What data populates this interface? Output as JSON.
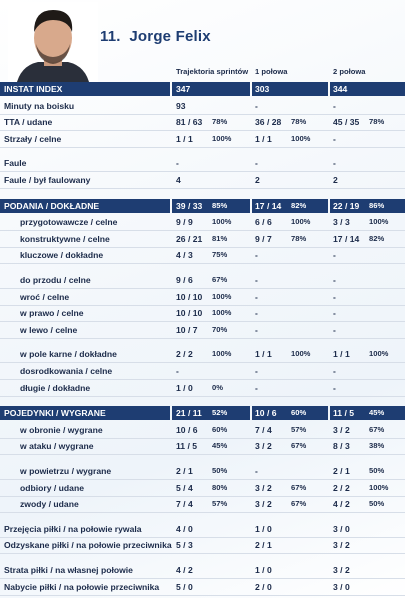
{
  "header": {
    "number": "11.",
    "name": "Jorge Felix"
  },
  "columns": [
    "Trajektoria sprintów",
    "1 połowa",
    "2 połowa"
  ],
  "table": {
    "sections": [
      {
        "heading": {
          "label": "INSTAT INDEX",
          "cells": [
            [
              "347"
            ],
            [
              "303"
            ],
            [
              "344"
            ]
          ]
        },
        "rows": [
          {
            "label": "Minuty na boisku",
            "cells": [
              [
                "93"
              ],
              [
                "-"
              ],
              [
                "-"
              ]
            ]
          },
          {
            "label": "TTA / udane",
            "cells": [
              [
                "81 / 63",
                "78%"
              ],
              [
                "36 / 28",
                "78%"
              ],
              [
                "45 / 35",
                "78%"
              ]
            ]
          },
          {
            "label": "Strzały / celne",
            "cells": [
              [
                "1 / 1",
                "100%"
              ],
              [
                "1 / 1",
                "100%"
              ],
              [
                "-"
              ]
            ]
          }
        ]
      },
      {
        "rows": [
          {
            "label": "Faule",
            "cells": [
              [
                "-"
              ],
              [
                "-"
              ],
              [
                "-"
              ]
            ]
          },
          {
            "label": "Faule / był faulowany",
            "cells": [
              [
                "4"
              ],
              [
                "2"
              ],
              [
                "2"
              ]
            ]
          }
        ]
      },
      {
        "heading": {
          "label": "PODANIA / DOKŁADNE",
          "cells": [
            [
              "39 / 33",
              "85%"
            ],
            [
              "17 / 14",
              "82%"
            ],
            [
              "22 / 19",
              "86%"
            ]
          ]
        },
        "rows": [
          {
            "label": "przygotowawcze / celne",
            "cells": [
              [
                "9 / 9",
                "100%"
              ],
              [
                "6 / 6",
                "100%"
              ],
              [
                "3 / 3",
                "100%"
              ]
            ]
          },
          {
            "label": "konstruktywne / celne",
            "cells": [
              [
                "26 / 21",
                "81%"
              ],
              [
                "9 / 7",
                "78%"
              ],
              [
                "17 / 14",
                "82%"
              ]
            ]
          },
          {
            "label": "kluczowe / dokładne",
            "cells": [
              [
                "4 / 3",
                "75%"
              ],
              [
                "-"
              ],
              [
                "-"
              ]
            ]
          }
        ]
      },
      {
        "rows": [
          {
            "label": "do przodu / celne",
            "cells": [
              [
                "9 / 6",
                "67%"
              ],
              [
                "-"
              ],
              [
                "-"
              ]
            ]
          },
          {
            "label": "wroć / celne",
            "cells": [
              [
                "10 / 10",
                "100%"
              ],
              [
                "-"
              ],
              [
                "-"
              ]
            ]
          },
          {
            "label": "w prawo / celne",
            "cells": [
              [
                "10 / 10",
                "100%"
              ],
              [
                "-"
              ],
              [
                "-"
              ]
            ]
          },
          {
            "label": "w lewo / celne",
            "cells": [
              [
                "10 / 7",
                "70%"
              ],
              [
                "-"
              ],
              [
                "-"
              ]
            ]
          }
        ]
      },
      {
        "rows": [
          {
            "label": "w pole karne / dokładne",
            "cells": [
              [
                "2 / 2",
                "100%"
              ],
              [
                "1 / 1",
                "100%"
              ],
              [
                "1 / 1",
                "100%"
              ]
            ]
          },
          {
            "label": "dosrodkowania / celne",
            "cells": [
              [
                "-"
              ],
              [
                "-"
              ],
              [
                "-"
              ]
            ]
          },
          {
            "label": "długie / dokładne",
            "cells": [
              [
                "1 / 0",
                "0%"
              ],
              [
                "-"
              ],
              [
                "-"
              ]
            ]
          }
        ]
      },
      {
        "heading": {
          "label": "POJEDYNKI / WYGRANE",
          "cells": [
            [
              "21 / 11",
              "52%"
            ],
            [
              "10 / 6",
              "60%"
            ],
            [
              "11 / 5",
              "45%"
            ]
          ]
        },
        "rows": [
          {
            "label": "w obronie / wygrane",
            "cells": [
              [
                "10 / 6",
                "60%"
              ],
              [
                "7 / 4",
                "57%"
              ],
              [
                "3 / 2",
                "67%"
              ]
            ]
          },
          {
            "label": "w ataku / wygrane",
            "cells": [
              [
                "11 / 5",
                "45%"
              ],
              [
                "3 / 2",
                "67%"
              ],
              [
                "8 / 3",
                "38%"
              ]
            ]
          }
        ]
      },
      {
        "rows": [
          {
            "label": "w powietrzu / wygrane",
            "cells": [
              [
                "2 / 1",
                "50%"
              ],
              [
                "-"
              ],
              [
                "2 / 1",
                "50%"
              ]
            ]
          },
          {
            "label": "odbiory / udane",
            "cells": [
              [
                "5 / 4",
                "80%"
              ],
              [
                "3 / 2",
                "67%"
              ],
              [
                "2 / 2",
                "100%"
              ]
            ]
          },
          {
            "label": "zwody / udane",
            "cells": [
              [
                "7 / 4",
                "57%"
              ],
              [
                "3 / 2",
                "67%"
              ],
              [
                "4 / 2",
                "50%"
              ]
            ]
          }
        ]
      },
      {
        "rows": [
          {
            "label": "Przejęcia piłki / na połowie rywala",
            "cells": [
              [
                "4 / 0"
              ],
              [
                "1 / 0"
              ],
              [
                "3 / 0"
              ]
            ]
          },
          {
            "label": "Odzyskane piłki / na połowie przeciwnika",
            "cells": [
              [
                "5 / 3"
              ],
              [
                "2 / 1"
              ],
              [
                "3 / 2"
              ]
            ]
          }
        ]
      },
      {
        "rows": [
          {
            "label": "Strata piłki / na własnej połowie",
            "cells": [
              [
                "4 / 2"
              ],
              [
                "1 / 0"
              ],
              [
                "3 / 2"
              ]
            ]
          },
          {
            "label": "Nabycie piłki / na połowie przeciwnika",
            "cells": [
              [
                "5 / 0"
              ],
              [
                "2 / 0"
              ],
              [
                "3 / 0"
              ]
            ]
          }
        ]
      }
    ]
  }
}
